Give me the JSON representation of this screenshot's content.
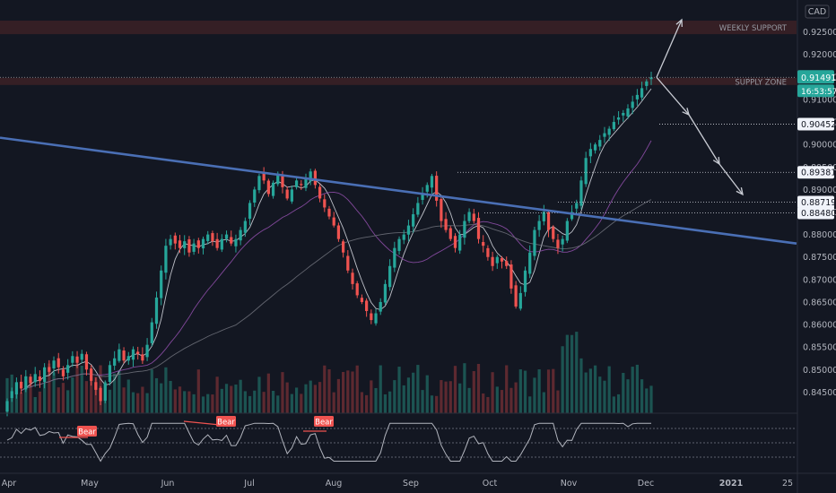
{
  "currency": "CAD",
  "colors": {
    "background": "#131722",
    "bull": "#26a69a",
    "bear": "#ef5350",
    "trendline": "#4a6fb5",
    "zone": "#3a2026",
    "rsi_line": "#b2b5be",
    "axis_text": "#b2b5be",
    "grid_dot": "#787b86"
  },
  "chart_data": [
    {
      "type": "candlestick",
      "symbol_quote": "CAD",
      "x_tick_labels": [
        "Apr",
        "May",
        "Jun",
        "Jul",
        "Aug",
        "Sep",
        "Oct",
        "Nov",
        "Dec",
        "2021",
        "25"
      ],
      "y_tick_labels": [
        "0.92500",
        "0.92000",
        "0.91500",
        "0.91000",
        "0.90500",
        "0.90000",
        "0.89500",
        "0.89000",
        "0.88500",
        "0.88000",
        "0.87500",
        "0.87000",
        "0.86500",
        "0.86000",
        "0.85500",
        "0.85000",
        "0.84500"
      ],
      "y_range": [
        0.8415,
        0.9285
      ],
      "current_price": "0.91491",
      "countdown": "16:53:57",
      "marked_levels": [
        "0.90452",
        "0.89381",
        "0.88719",
        "0.88480"
      ],
      "zones": [
        {
          "label": "WEEKLY SUPPORT",
          "from": 0.9245,
          "to": 0.9275
        },
        {
          "label": "SUPPLY ZONE",
          "from": 0.9135,
          "to": 0.9148
        }
      ],
      "trendline": {
        "from_price": 0.9015,
        "to_price": 0.878
      },
      "projection_arrows": true,
      "close_series": [
        0.843,
        0.8452,
        0.8472,
        0.8458,
        0.8485,
        0.847,
        0.849,
        0.8475,
        0.8505,
        0.8495,
        0.852,
        0.8505,
        0.8485,
        0.851,
        0.853,
        0.8515,
        0.8535,
        0.85,
        0.8475,
        0.8455,
        0.843,
        0.847,
        0.851,
        0.8525,
        0.8545,
        0.852,
        0.853,
        0.8545,
        0.8535,
        0.852,
        0.8555,
        0.8605,
        0.866,
        0.872,
        0.8775,
        0.879,
        0.878,
        0.877,
        0.8785,
        0.876,
        0.878,
        0.877,
        0.879,
        0.88,
        0.8785,
        0.877,
        0.879,
        0.88,
        0.878,
        0.879,
        0.881,
        0.883,
        0.887,
        0.89,
        0.893,
        0.892,
        0.889,
        0.8915,
        0.8935,
        0.8905,
        0.888,
        0.89,
        0.892,
        0.891,
        0.8925,
        0.894,
        0.891,
        0.888,
        0.886,
        0.884,
        0.882,
        0.879,
        0.876,
        0.872,
        0.869,
        0.8665,
        0.865,
        0.863,
        0.861,
        0.8625,
        0.865,
        0.869,
        0.873,
        0.877,
        0.879,
        0.88,
        0.882,
        0.8845,
        0.887,
        0.889,
        0.891,
        0.893,
        0.8875,
        0.883,
        0.881,
        0.879,
        0.877,
        0.88,
        0.883,
        0.885,
        0.883,
        0.879,
        0.8775,
        0.875,
        0.873,
        0.875,
        0.874,
        0.873,
        0.868,
        0.864,
        0.867,
        0.872,
        0.876,
        0.881,
        0.883,
        0.885,
        0.881,
        0.879,
        0.877,
        0.879,
        0.883,
        0.885,
        0.887,
        0.892,
        0.897,
        0.899,
        0.9,
        0.901,
        0.9025,
        0.9035,
        0.905,
        0.906,
        0.907,
        0.908,
        0.9095,
        0.911,
        0.9125,
        0.914,
        0.9149
      ],
      "rsi": {
        "levels": [
          "75.00",
          "50.00"
        ],
        "divergence_labels": [
          "Bear",
          "Bear",
          "Bear"
        ]
      }
    }
  ]
}
